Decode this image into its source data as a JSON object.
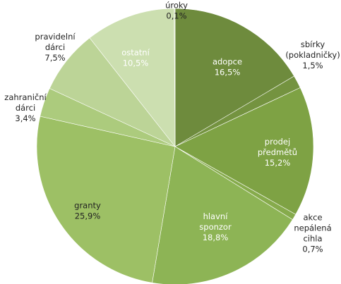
{
  "chart_data": {
    "type": "pie",
    "slices": [
      {
        "name_lines": [
          "adopce"
        ],
        "value_label": "16,5%",
        "value": 16.5,
        "color": "#6e8b3d"
      },
      {
        "name_lines": [
          "sbírky",
          "(pokladničky)"
        ],
        "value_label": "1,5%",
        "value": 1.5,
        "color": "#749340"
      },
      {
        "name_lines": [
          "prodej",
          "předmětů"
        ],
        "value_label": "15,2%",
        "value": 15.2,
        "color": "#7ea244"
      },
      {
        "name_lines": [
          "akce",
          "nepálená",
          "cihla"
        ],
        "value_label": "0,7%",
        "value": 0.7,
        "color": "#86ab4c"
      },
      {
        "name_lines": [
          "hlavní",
          "sponzor"
        ],
        "value_label": "18,8%",
        "value": 18.8,
        "color": "#8db455"
      },
      {
        "name_lines": [
          "granty"
        ],
        "value_label": "25,9%",
        "value": 25.9,
        "color": "#9dc065"
      },
      {
        "name_lines": [
          "zahraniční",
          "dárci"
        ],
        "value_label": "3,4%",
        "value": 3.4,
        "color": "#accb7d"
      },
      {
        "name_lines": [
          "pravidelní",
          "dárci"
        ],
        "value_label": "7,5%",
        "value": 7.5,
        "color": "#bcd497"
      },
      {
        "name_lines": [
          "ostatní"
        ],
        "value_label": "10,5%",
        "value": 10.5,
        "color": "#ccdfb0"
      },
      {
        "name_lines": [
          "úroky"
        ],
        "value_label": "0,1%",
        "value": 0.1,
        "color": "#d9e7c5"
      }
    ]
  }
}
